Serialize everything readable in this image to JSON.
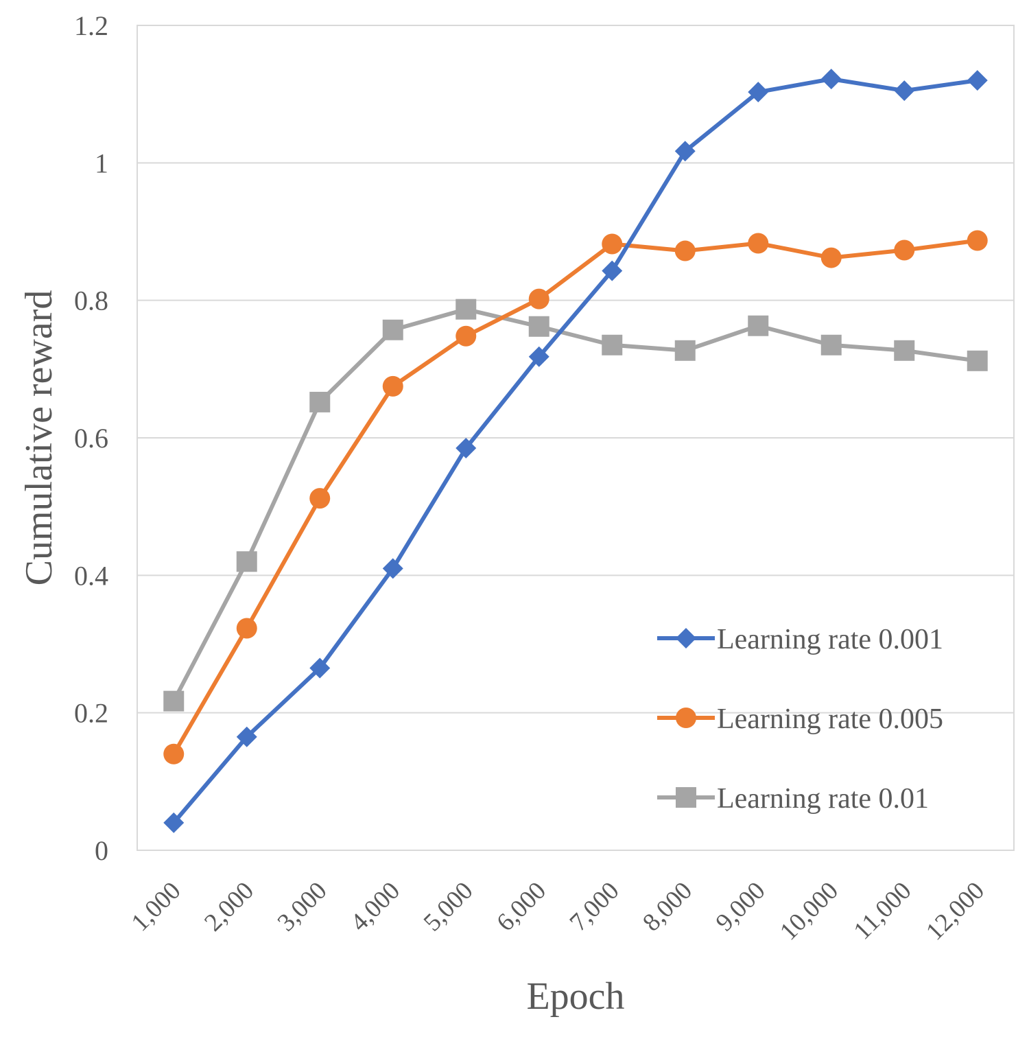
{
  "chart_data": {
    "type": "line",
    "title": "",
    "xlabel": "Epoch",
    "ylabel": "Cumulative reward",
    "categories": [
      "1,000",
      "2,000",
      "3,000",
      "4,000",
      "5,000",
      "6,000",
      "7,000",
      "8,000",
      "9,000",
      "10,000",
      "11,000",
      "12,000"
    ],
    "ylim": [
      0,
      1.2
    ],
    "yticks": [
      0,
      0.2,
      0.4,
      0.6,
      0.8,
      1,
      1.2
    ],
    "ytick_labels": [
      "0",
      "0.2",
      "0.4",
      "0.6",
      "0.8",
      "1",
      "1.2"
    ],
    "grid": true,
    "legend_position": "right-bottom",
    "series": [
      {
        "name": "Learning rate 0.001",
        "color": "#4472C4",
        "marker": "diamond",
        "values": [
          0.04,
          0.165,
          0.265,
          0.41,
          0.585,
          0.718,
          0.843,
          1.017,
          1.103,
          1.122,
          1.105,
          1.12
        ]
      },
      {
        "name": "Learning rate 0.005",
        "color": "#ED7D31",
        "marker": "circle",
        "values": [
          0.14,
          0.323,
          0.512,
          0.675,
          0.748,
          0.802,
          0.882,
          0.872,
          0.883,
          0.862,
          0.873,
          0.887
        ]
      },
      {
        "name": "Learning rate 0.01",
        "color": "#A5A5A5",
        "marker": "square",
        "values": [
          0.217,
          0.42,
          0.652,
          0.757,
          0.787,
          0.762,
          0.735,
          0.727,
          0.763,
          0.735,
          0.727,
          0.712
        ]
      }
    ]
  }
}
